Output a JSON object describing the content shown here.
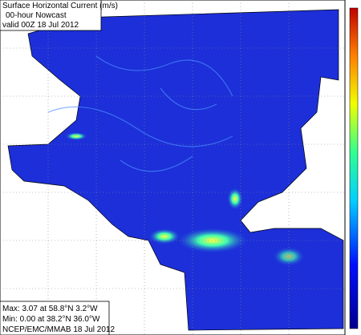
{
  "header": {
    "title": "Surface Horizontal Current (m/s)",
    "subtitle": "00-hour Nowcast",
    "valid": "valid 00Z 18 Jul 2012"
  },
  "footer": {
    "max": "Max: 3.07 at 58.8°N 3.2°W",
    "min": "Min: 0.00 at 38.2°N 36.0°W",
    "credit": "NCEP/EMC/MMAB 18 Jul 2012"
  }
}
